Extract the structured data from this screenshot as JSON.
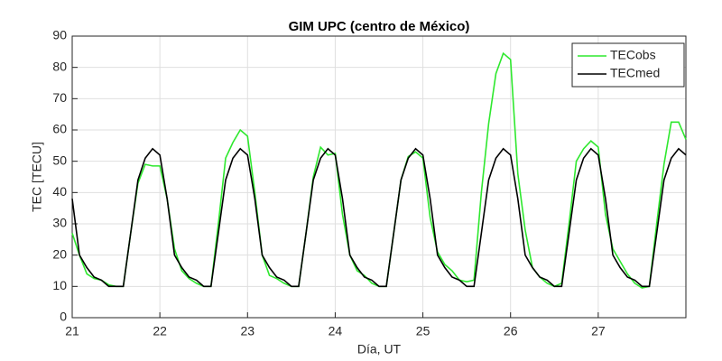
{
  "chart_data": {
    "type": "line",
    "title": "GIM UPC (centro de México)",
    "x_label": "Día, UT",
    "y_label": "TEC [TECU]",
    "x": [
      21,
      21.083,
      21.167,
      21.25,
      21.333,
      21.417,
      21.5,
      21.583,
      21.667,
      21.75,
      21.833,
      21.917,
      22,
      22.083,
      22.167,
      22.25,
      22.333,
      22.417,
      22.5,
      22.583,
      22.667,
      22.75,
      22.833,
      22.917,
      23,
      23.083,
      23.167,
      23.25,
      23.333,
      23.417,
      23.5,
      23.583,
      23.667,
      23.75,
      23.833,
      23.917,
      24,
      24.083,
      24.167,
      24.25,
      24.333,
      24.417,
      24.5,
      24.583,
      24.667,
      24.75,
      24.833,
      24.917,
      25,
      25.083,
      25.167,
      25.25,
      25.333,
      25.417,
      25.5,
      25.583,
      25.667,
      25.75,
      25.833,
      25.917,
      26,
      26.083,
      26.167,
      26.25,
      26.333,
      26.417,
      26.5,
      26.583,
      26.667,
      26.75,
      26.833,
      26.917,
      27,
      27.083,
      27.167,
      27.25,
      27.333,
      27.417,
      27.5,
      27.583,
      27.667,
      27.75,
      27.833,
      27.917,
      28
    ],
    "series": [
      {
        "name": "TECobs",
        "color": "#2ee82e",
        "values": [
          27,
          20,
          14,
          12.5,
          12,
          10.5,
          10,
          10,
          27,
          43,
          49,
          48.5,
          48.5,
          38,
          22,
          15,
          12.5,
          11,
          10,
          10,
          30,
          51,
          56,
          60,
          58,
          40,
          20,
          13.5,
          12.5,
          11,
          10,
          10,
          27,
          45,
          54.5,
          52,
          52.5,
          33,
          20,
          15,
          13.5,
          11,
          10,
          10,
          27,
          44,
          51.5,
          53,
          51,
          32,
          21,
          17,
          15,
          12,
          11.5,
          12,
          40,
          62,
          78,
          84.5,
          82.5,
          46,
          28,
          16,
          13,
          11,
          10,
          11,
          30,
          50,
          54,
          56.5,
          54.5,
          33,
          22,
          18,
          14,
          11,
          9.5,
          10,
          30,
          49,
          62.5,
          62.5,
          57
        ]
      },
      {
        "name": "TECmed",
        "color": "#000000",
        "values": [
          38,
          20,
          16,
          13,
          12,
          10,
          10,
          10,
          27,
          44,
          51,
          54,
          52,
          38,
          20,
          16,
          13,
          12,
          10,
          10,
          27,
          44,
          51,
          54,
          52,
          38,
          20,
          16,
          13,
          12,
          10,
          10,
          27,
          44,
          51,
          54,
          52,
          38,
          20,
          16,
          13,
          12,
          10,
          10,
          27,
          44,
          51,
          54,
          52,
          38,
          20,
          16,
          13,
          12,
          10,
          10,
          27,
          44,
          51,
          54,
          52,
          38,
          20,
          16,
          13,
          12,
          10,
          10,
          27,
          44,
          51,
          54,
          52,
          38,
          20,
          16,
          13,
          12,
          10,
          10,
          27,
          44,
          51,
          54,
          52
        ]
      }
    ],
    "xlim": [
      21,
      28
    ],
    "xticks": [
      21,
      22,
      23,
      24,
      25,
      26,
      27
    ],
    "ylim": [
      0,
      90
    ],
    "yticks": [
      0,
      10,
      20,
      30,
      40,
      50,
      60,
      70,
      80,
      90
    ],
    "grid": true,
    "legend": "upper right"
  }
}
